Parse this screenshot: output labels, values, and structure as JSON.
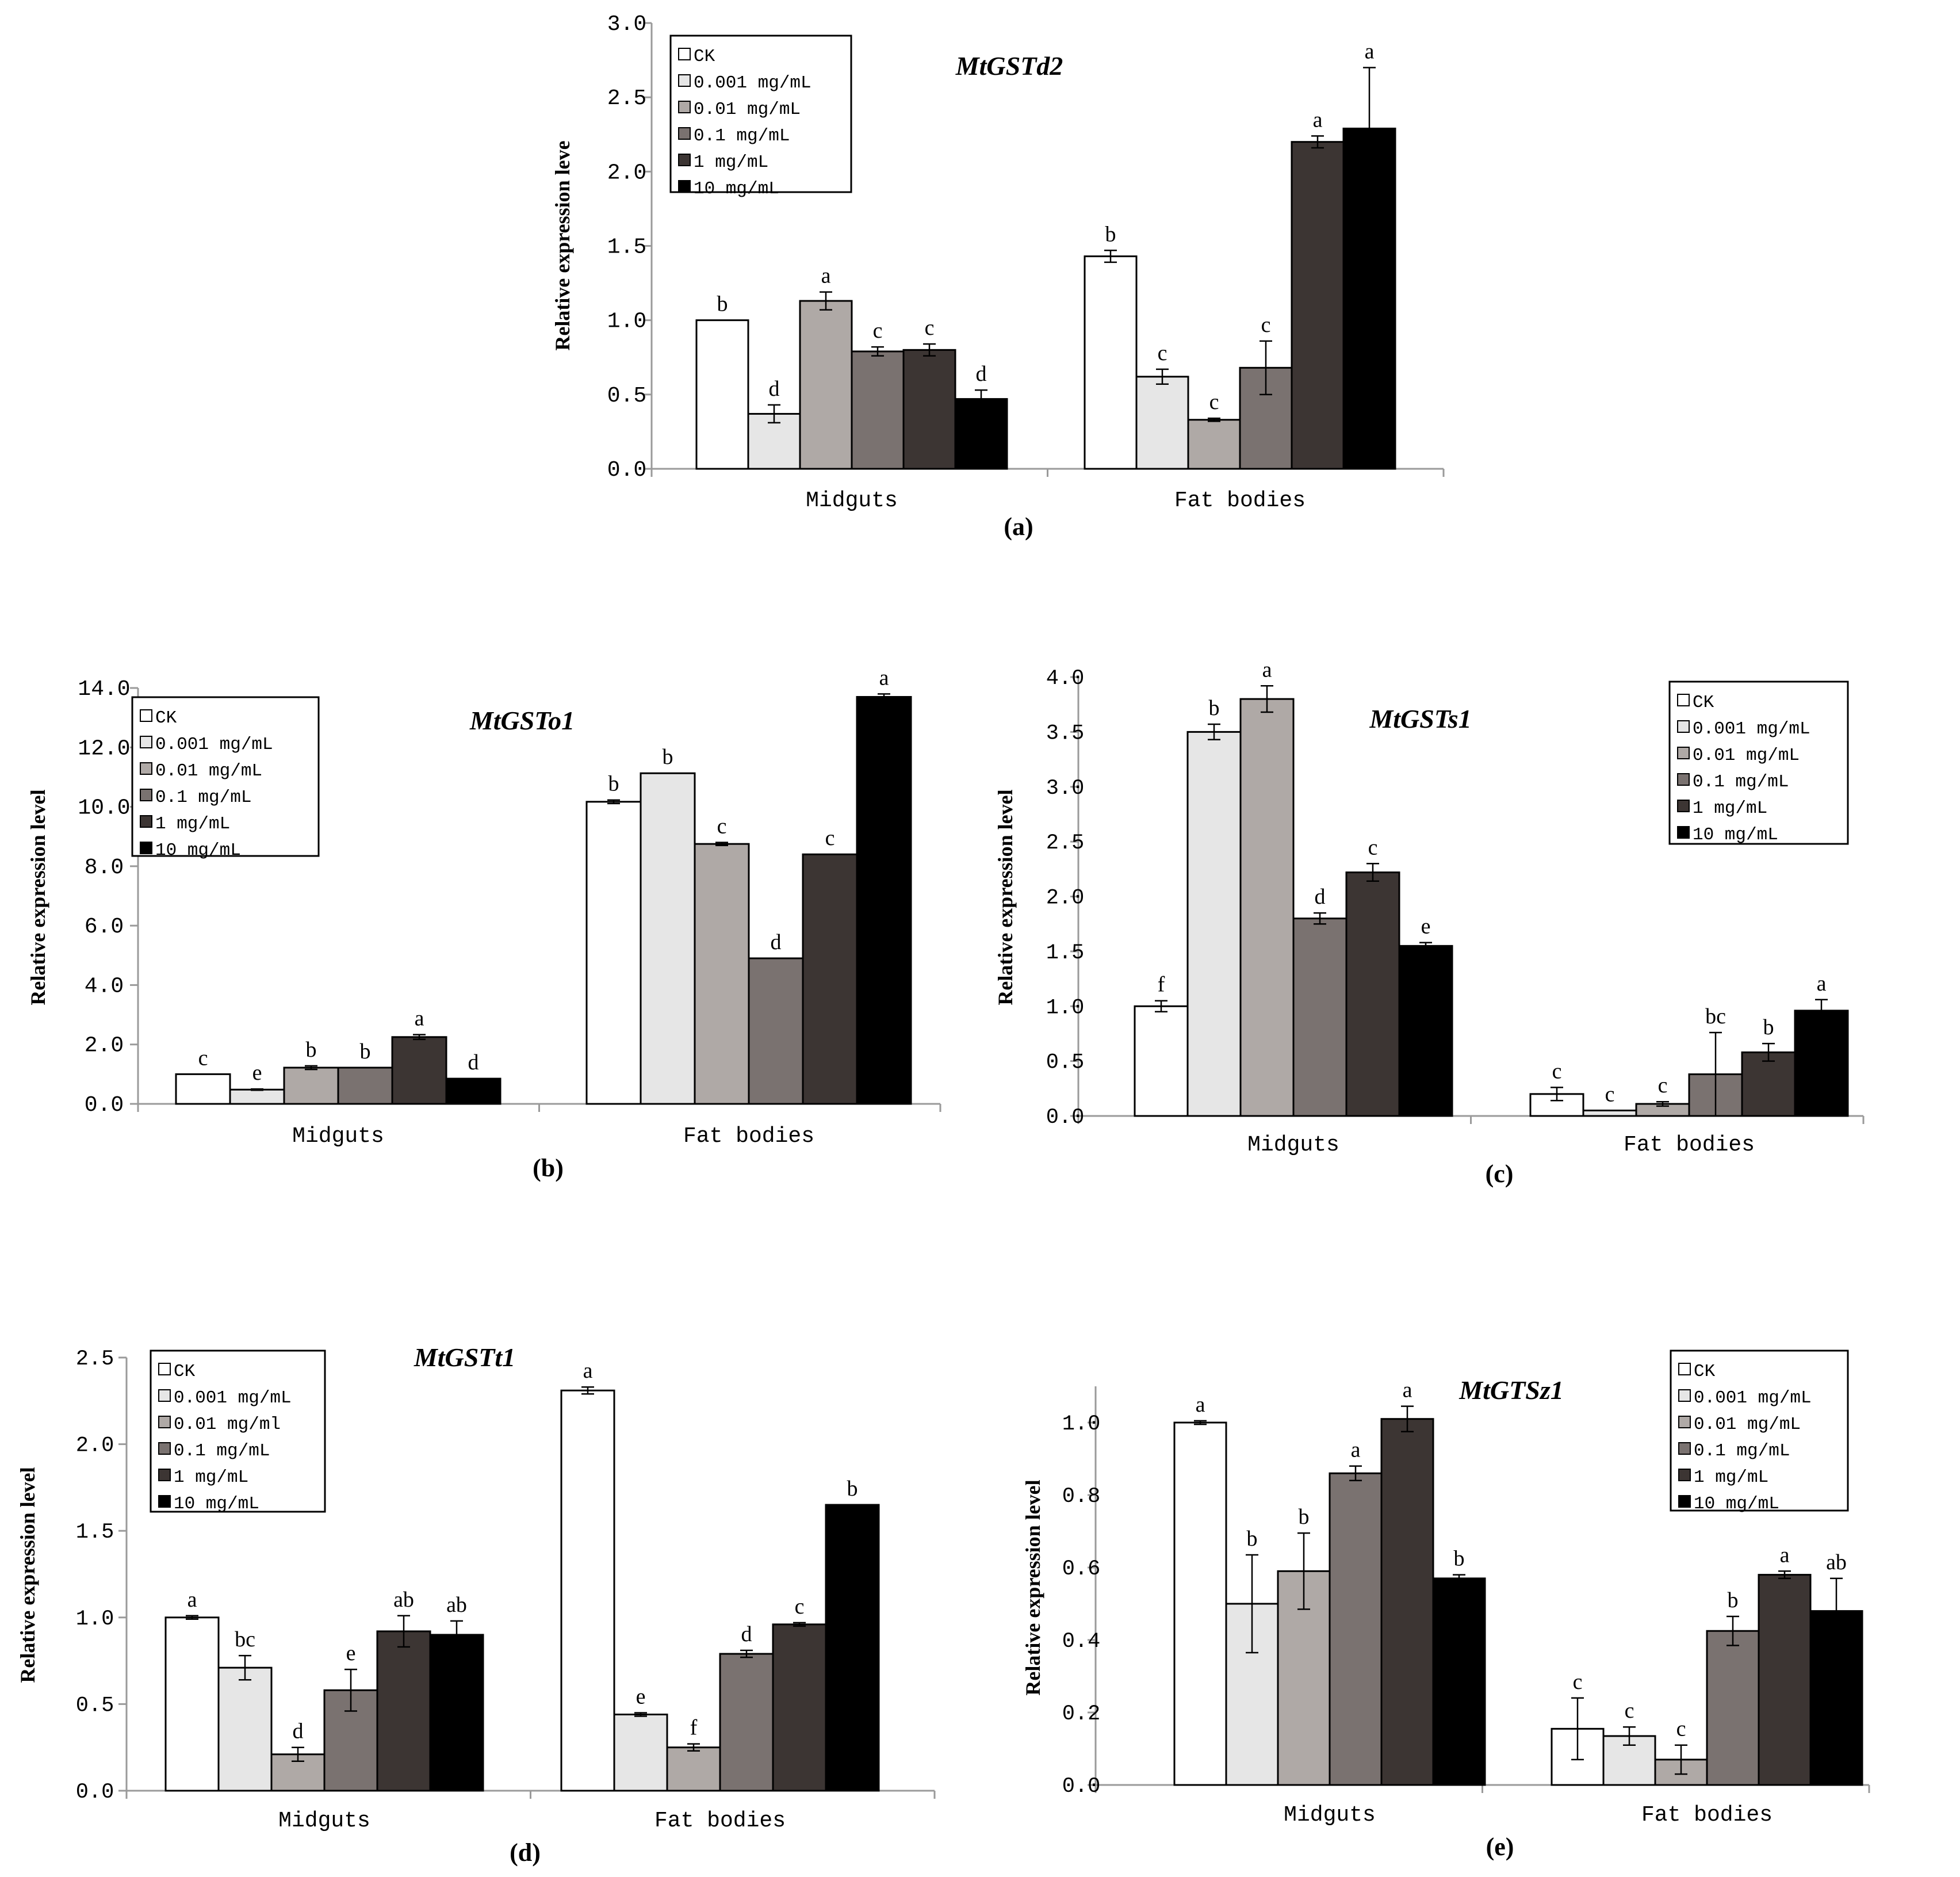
{
  "colors": {
    "CK": "#ffffff",
    "0.001": "#e6e6e6",
    "0.01": "#afa9a6",
    "0.1": "#7a7270",
    "1": "#3c3533",
    "10": "#000000",
    "axis": "#9a9a9a",
    "text": "#000000"
  },
  "chart_data": [
    {
      "panel": "(a)",
      "type": "bar",
      "title": "MtGSTd2",
      "ylabel": "Relative expression leve",
      "ylim": [
        0,
        3.0
      ],
      "yticks": [
        "0.0",
        "0.5",
        "1.0",
        "1.5",
        "2.0",
        "2.5",
        "3.0"
      ],
      "categories": [
        "Midguts",
        "Fat bodies"
      ],
      "legend": [
        "CK",
        "0.001 mg/mL",
        "0.01 mg/mL",
        "0.1 mg/mL",
        "1 mg/mL",
        "10 mg/mL"
      ],
      "legend_position": "top-left",
      "series": [
        {
          "name": "CK",
          "values": [
            1.0,
            1.43
          ],
          "errors": [
            0,
            0.04
          ],
          "letters": [
            "b",
            "b"
          ]
        },
        {
          "name": "0.001 mg/mL",
          "values": [
            0.37,
            0.62
          ],
          "errors": [
            0.06,
            0.05
          ],
          "letters": [
            "d",
            "c"
          ]
        },
        {
          "name": "0.01 mg/mL",
          "values": [
            1.13,
            0.33
          ],
          "errors": [
            0.06,
            0.01
          ],
          "letters": [
            "a",
            "c"
          ]
        },
        {
          "name": "0.1 mg/mL",
          "values": [
            0.79,
            0.68
          ],
          "errors": [
            0.03,
            0.18
          ],
          "letters": [
            "c",
            "c"
          ]
        },
        {
          "name": "1 mg/mL",
          "values": [
            0.8,
            2.2
          ],
          "errors": [
            0.04,
            0.04
          ],
          "letters": [
            "c",
            "a"
          ]
        },
        {
          "name": "10 mg/mL",
          "values": [
            0.47,
            2.29
          ],
          "errors": [
            0.06,
            0.41
          ],
          "letters": [
            "d",
            "a"
          ]
        }
      ]
    },
    {
      "panel": "(b)",
      "type": "bar",
      "title": "MtGSTo1",
      "ylabel": "Relative expression level",
      "ylim": [
        0,
        14.0
      ],
      "yticks": [
        "0.0",
        "2.0",
        "4.0",
        "6.0",
        "8.0",
        "10.0",
        "12.0",
        "14.0"
      ],
      "categories": [
        "Midguts",
        "Fat bodies"
      ],
      "legend": [
        "CK",
        "0.001 mg/mL",
        "0.01 mg/mL",
        "0.1 mg/mL",
        "1 mg/mL",
        "10 mg/mL"
      ],
      "legend_position": "top-left",
      "series": [
        {
          "name": "CK",
          "values": [
            1.0,
            10.17
          ],
          "errors": [
            0,
            0.06
          ],
          "letters": [
            "c",
            "b"
          ]
        },
        {
          "name": "0.001 mg/mL",
          "values": [
            0.48,
            11.13
          ],
          "errors": [
            0.02,
            0
          ],
          "letters": [
            "e",
            "b"
          ]
        },
        {
          "name": "0.01 mg/mL",
          "values": [
            1.22,
            8.75
          ],
          "errors": [
            0.06,
            0.05
          ],
          "letters": [
            "b",
            "c"
          ]
        },
        {
          "name": "0.1 mg/mL",
          "values": [
            1.22,
            4.9
          ],
          "errors": [
            0,
            0
          ],
          "letters": [
            "b",
            "d"
          ]
        },
        {
          "name": "1 mg/mL",
          "values": [
            2.25,
            8.4
          ],
          "errors": [
            0.08,
            0
          ],
          "letters": [
            "a",
            "c"
          ]
        },
        {
          "name": "10 mg/mL",
          "values": [
            0.85,
            13.7
          ],
          "errors": [
            0,
            0.1
          ],
          "letters": [
            "d",
            "a"
          ]
        }
      ]
    },
    {
      "panel": "(c)",
      "type": "bar",
      "title": "MtGSTs1",
      "ylabel": "Relative expression level",
      "ylim": [
        0,
        4.0
      ],
      "yticks": [
        "0.0",
        "0.5",
        "1.0",
        "1.5",
        "2.0",
        "2.5",
        "3.0",
        "3.5",
        "4.0"
      ],
      "categories": [
        "Midguts",
        "Fat bodies"
      ],
      "legend": [
        "CK",
        "0.001 mg/mL",
        "0.01 mg/mL",
        "0.1 mg/mL",
        "1 mg/mL",
        "10 mg/mL"
      ],
      "legend_position": "top-right",
      "series": [
        {
          "name": "CK",
          "values": [
            1.0,
            0.2
          ],
          "errors": [
            0.05,
            0.06
          ],
          "letters": [
            "f",
            "c"
          ]
        },
        {
          "name": "0.001 mg/mL",
          "values": [
            3.5,
            0.05
          ],
          "errors": [
            0.07,
            0
          ],
          "letters": [
            "b",
            "c"
          ]
        },
        {
          "name": "0.01 mg/mL",
          "values": [
            3.8,
            0.11
          ],
          "errors": [
            0.12,
            0.02
          ],
          "letters": [
            "a",
            "c"
          ]
        },
        {
          "name": "0.1 mg/mL",
          "values": [
            1.8,
            0.38
          ],
          "errors": [
            0.05,
            0.38
          ],
          "letters": [
            "d",
            "bc"
          ]
        },
        {
          "name": "1 mg/mL",
          "values": [
            2.22,
            0.58
          ],
          "errors": [
            0.08,
            0.08
          ],
          "letters": [
            "c",
            "b"
          ]
        },
        {
          "name": "10 mg/mL",
          "values": [
            1.55,
            0.96
          ],
          "errors": [
            0.03,
            0.1
          ],
          "letters": [
            "e",
            "a"
          ]
        }
      ]
    },
    {
      "panel": "(d)",
      "type": "bar",
      "title": "MtGSTt1",
      "ylabel": "Relative expression level",
      "ylim": [
        0,
        2.5
      ],
      "yticks": [
        "0.0",
        "0.5",
        "1.0",
        "1.5",
        "2.0",
        "2.5"
      ],
      "categories": [
        "Midguts",
        "Fat bodies"
      ],
      "legend": [
        "CK",
        "0.001 mg/mL",
        "0.01 mg/ml",
        "0.1 mg/mL",
        "1 mg/mL",
        "10 mg/mL"
      ],
      "legend_position": "top-left",
      "series": [
        {
          "name": "CK",
          "values": [
            1.0,
            2.31
          ],
          "errors": [
            0.01,
            0.02
          ],
          "letters": [
            "a",
            "a"
          ]
        },
        {
          "name": "0.001 mg/mL",
          "values": [
            0.71,
            0.44
          ],
          "errors": [
            0.07,
            0.01
          ],
          "letters": [
            "bc",
            "e"
          ]
        },
        {
          "name": "0.01 mg/ml",
          "values": [
            0.21,
            0.25
          ],
          "errors": [
            0.04,
            0.02
          ],
          "letters": [
            "d",
            "f"
          ]
        },
        {
          "name": "0.1 mg/mL",
          "values": [
            0.58,
            0.79
          ],
          "errors": [
            0.12,
            0.02
          ],
          "letters": [
            "e",
            "d"
          ]
        },
        {
          "name": "1 mg/mL",
          "values": [
            0.92,
            0.96
          ],
          "errors": [
            0.09,
            0.01
          ],
          "letters": [
            "ab",
            "c"
          ]
        },
        {
          "name": "10 mg/mL",
          "values": [
            0.9,
            1.65
          ],
          "errors": [
            0.08,
            0
          ],
          "letters": [
            "ab",
            "b"
          ]
        }
      ]
    },
    {
      "panel": "(e)",
      "type": "bar",
      "title": "MtGTSz1",
      "ylabel": "Relative expression level",
      "ylim": [
        0,
        1.1
      ],
      "yticks": [
        "0.0",
        "0.2",
        "0.4",
        "0.6",
        "0.8",
        "1.0"
      ],
      "categories": [
        "Midguts",
        "Fat bodies"
      ],
      "legend": [
        "CK",
        "0.001 mg/mL",
        "0.01 mg/mL",
        "0.1 mg/mL",
        "1 mg/mL",
        "10 mg/mL"
      ],
      "legend_position": "top-right",
      "series": [
        {
          "name": "CK",
          "values": [
            1.0,
            0.155
          ],
          "errors": [
            0.005,
            0.085
          ],
          "letters": [
            "a",
            "c"
          ]
        },
        {
          "name": "0.001 mg/mL",
          "values": [
            0.5,
            0.135
          ],
          "errors": [
            0.135,
            0.025
          ],
          "letters": [
            "b",
            "c"
          ]
        },
        {
          "name": "0.01 mg/mL",
          "values": [
            0.59,
            0.07
          ],
          "errors": [
            0.105,
            0.04
          ],
          "letters": [
            "b",
            "c"
          ]
        },
        {
          "name": "0.1 mg/mL",
          "values": [
            0.86,
            0.425
          ],
          "errors": [
            0.02,
            0.04
          ],
          "letters": [
            "a",
            "b"
          ]
        },
        {
          "name": "1 mg/mL",
          "values": [
            1.01,
            0.58
          ],
          "errors": [
            0.035,
            0.01
          ],
          "letters": [
            "a",
            "a"
          ]
        },
        {
          "name": "10 mg/mL",
          "values": [
            0.57,
            0.48
          ],
          "errors": [
            0.01,
            0.09
          ],
          "letters": [
            "b",
            "ab"
          ]
        }
      ]
    }
  ]
}
